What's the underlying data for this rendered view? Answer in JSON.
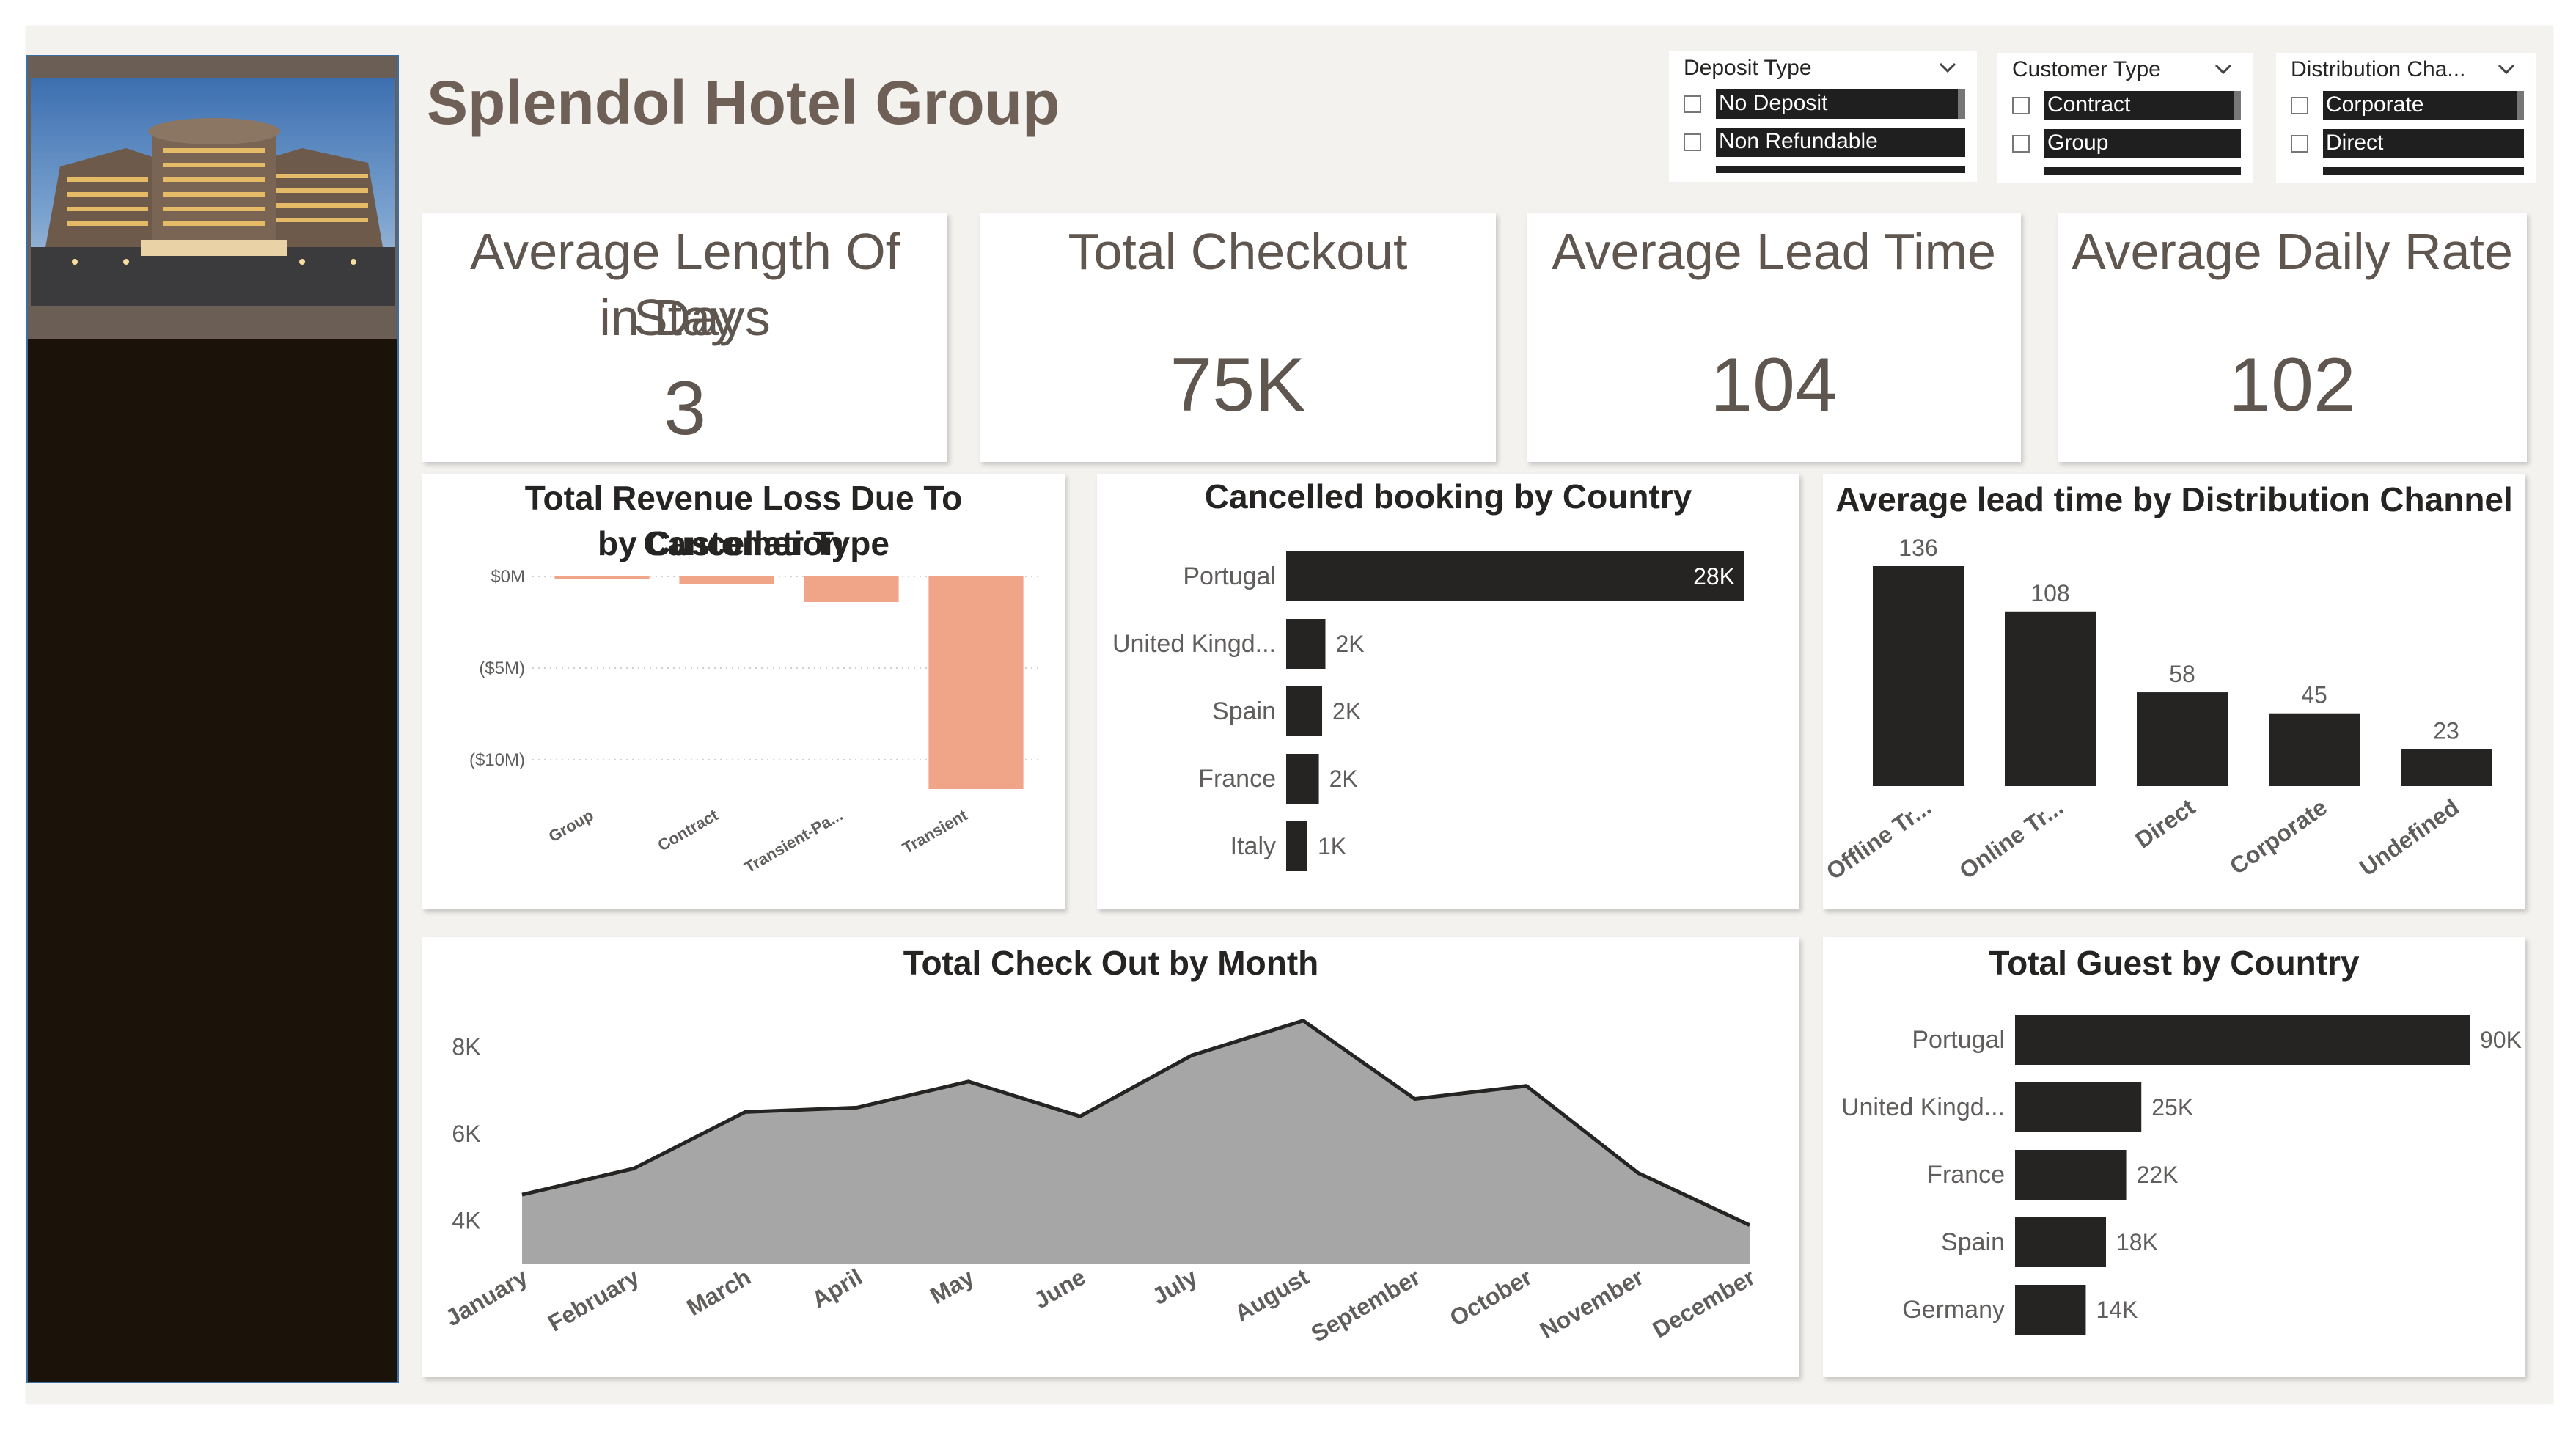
{
  "header": {
    "title": "Splendol Hotel Group"
  },
  "sidebar": {
    "image_alt": "Hotel building at dusk"
  },
  "slicers": [
    {
      "title": "Deposit Type",
      "items": [
        "No Deposit",
        "Non Refundable"
      ]
    },
    {
      "title": "Customer Type",
      "items": [
        "Contract",
        "Group"
      ]
    },
    {
      "title": "Distribution Cha...",
      "items": [
        "Corporate",
        "Direct"
      ]
    }
  ],
  "kpis": {
    "avg_stay": {
      "label_line1": "Average Length Of Stay",
      "label_line2": "in Days",
      "value": "3"
    },
    "total_checkout": {
      "label": "Total Checkout",
      "value": "75K"
    },
    "avg_lead_time": {
      "label": "Average Lead Time",
      "value": "104"
    },
    "avg_daily_rate": {
      "label": "Average Daily Rate",
      "value": "102"
    }
  },
  "colors": {
    "dark": "#252423",
    "salmon": "#f0a488",
    "area": "#a6a6a6",
    "text": "#5f5650"
  },
  "chart_data": [
    {
      "id": "revenue_loss",
      "type": "bar",
      "title_line1": "Total Revenue Loss Due To Cancellation",
      "title_line2": "by Customer Type",
      "categories": [
        "Group",
        "Contract",
        "Transient-Pa...",
        "Transient"
      ],
      "values": [
        -0.1,
        -0.4,
        -1.4,
        -11.6
      ],
      "ylim": [
        -12,
        0
      ],
      "yticks": [
        0,
        -5,
        -10
      ],
      "ytick_labels": [
        "$0M",
        "($5M)",
        "($10M)"
      ],
      "grid": true
    },
    {
      "id": "cancelled_country",
      "type": "bar",
      "orientation": "horizontal",
      "title": "Cancelled booking by Country",
      "categories": [
        "Portugal",
        "United Kingd...",
        "Spain",
        "France",
        "Italy"
      ],
      "values": [
        28,
        2.4,
        2.2,
        2.0,
        1.3
      ],
      "data_labels": [
        "28K",
        "2K",
        "2K",
        "2K",
        "1K"
      ]
    },
    {
      "id": "lead_channel",
      "type": "bar",
      "title": "Average lead time by Distribution Channel",
      "categories": [
        "Offline Tr...",
        "Online Tr...",
        "Direct",
        "Corporate",
        "Undefined"
      ],
      "values": [
        136,
        108,
        58,
        45,
        23
      ],
      "data_labels": [
        "136",
        "108",
        "58",
        "45",
        "23"
      ]
    },
    {
      "id": "checkout_month",
      "type": "area",
      "title": "Total Check Out by Month",
      "categories": [
        "January",
        "February",
        "March",
        "April",
        "May",
        "June",
        "July",
        "August",
        "September",
        "October",
        "November",
        "December"
      ],
      "values": [
        4.6,
        5.2,
        6.5,
        6.6,
        7.2,
        6.4,
        7.8,
        8.6,
        6.8,
        7.1,
        5.1,
        3.9
      ],
      "ylim": [
        3,
        9
      ],
      "yticks": [
        4,
        6,
        8
      ],
      "ytick_labels": [
        "4K",
        "6K",
        "8K"
      ]
    },
    {
      "id": "guest_country",
      "type": "bar",
      "orientation": "horizontal",
      "title": "Total Guest by Country",
      "categories": [
        "Portugal",
        "United Kingd...",
        "France",
        "Spain",
        "Germany"
      ],
      "values": [
        90,
        25,
        22,
        18,
        14
      ],
      "data_labels": [
        "90K",
        "25K",
        "22K",
        "18K",
        "14K"
      ]
    }
  ]
}
